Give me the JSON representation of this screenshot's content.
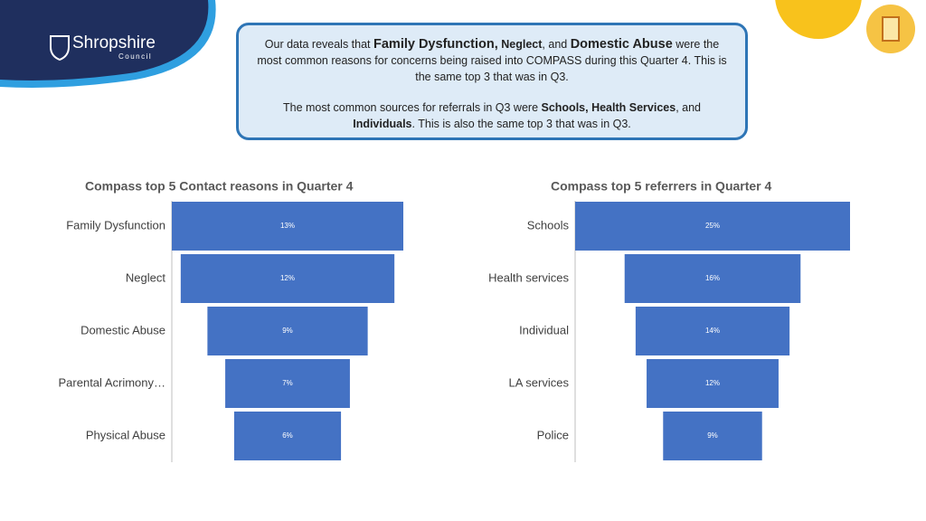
{
  "logo": {
    "name": "Shropshire",
    "subname": "Council"
  },
  "callout": {
    "paragraph1": [
      "Our data reveals that ",
      "Family Dysfunction,",
      " Neglect",
      ", and ",
      "Domestic Abuse",
      " were the most common reasons for concerns being raised into COMPASS during this Quarter 4. This is the same top 3 that was in Q3."
    ],
    "paragraph2": [
      "The most common sources for referrals in Q3 were ",
      "Schools, Health Services",
      ", and ",
      "Individuals",
      ". This is also the same top 3 that was in Q3."
    ]
  },
  "chart_data": [
    {
      "type": "funnel",
      "title": "Compass top 5 Contact reasons in Quarter 4",
      "categories": [
        "Family Dysfunction",
        "Neglect",
        "Domestic Abuse",
        "Parental Acrimony…",
        "Physical Abuse"
      ],
      "values": [
        13,
        12,
        9,
        7,
        6
      ],
      "value_labels": [
        "13%",
        "12%",
        "9%",
        "7%",
        "6%"
      ],
      "color": "#4472c4"
    },
    {
      "type": "funnel",
      "title": "Compass top 5 referrers in Quarter 4",
      "categories": [
        "Schools",
        "Health services",
        "Individual",
        "LA services",
        "Police"
      ],
      "values": [
        25,
        16,
        14,
        12,
        9
      ],
      "value_labels": [
        "25%",
        "16%",
        "14%",
        "12%",
        "9%"
      ],
      "color": "#4472c4"
    }
  ]
}
